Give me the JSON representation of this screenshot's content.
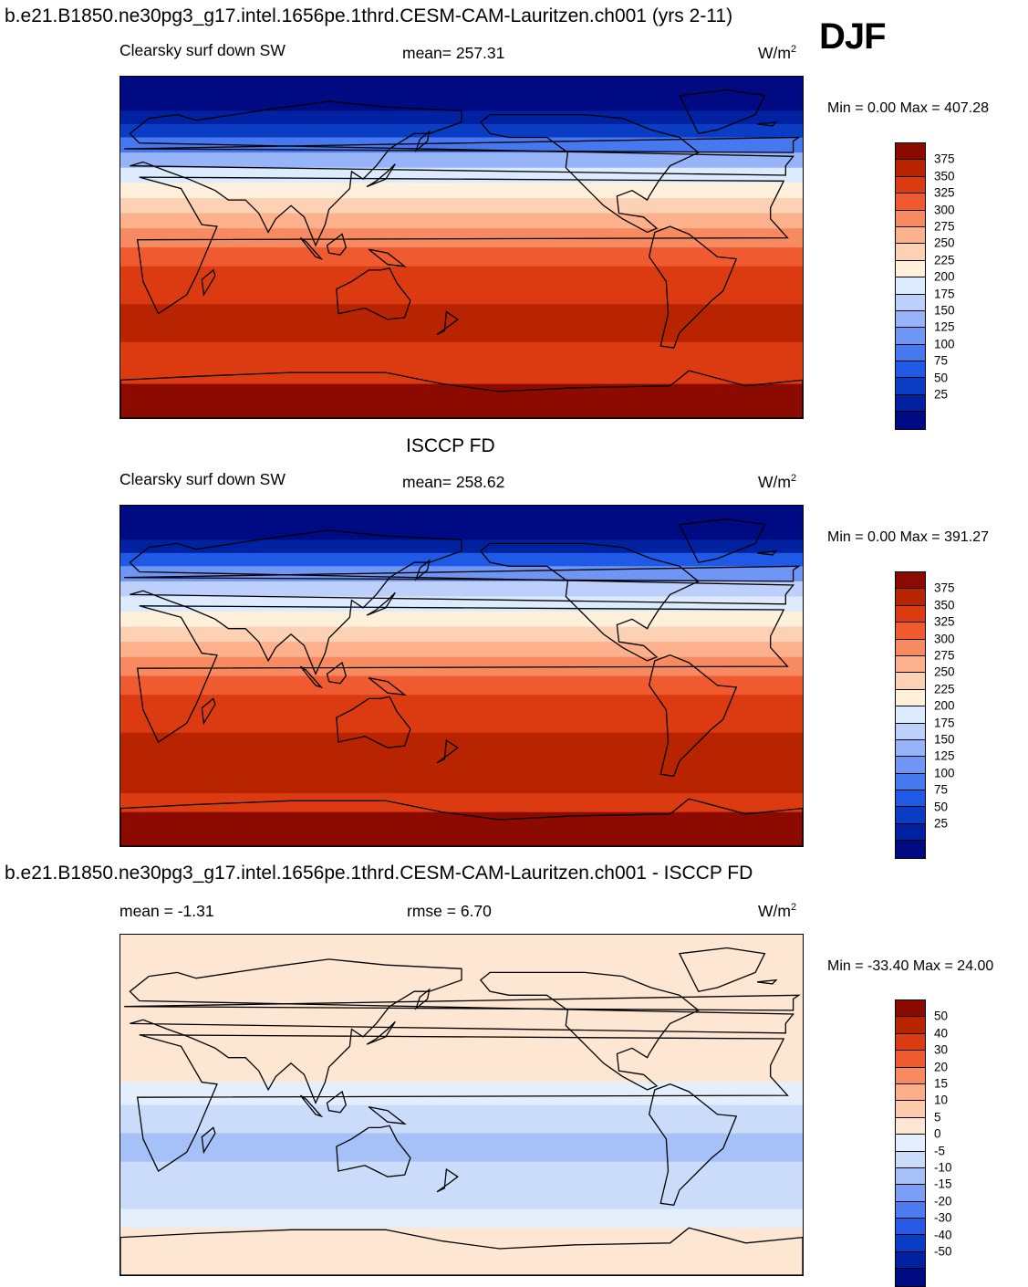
{
  "header": {
    "title": "b.e21.B1850.ne30pg3_g17.intel.1656pe.1thrd.CESM-CAM-Lauritzen.ch001 (yrs 2-11)",
    "season": "DJF"
  },
  "palettes": {
    "main": [
      "#000a82",
      "#0022a0",
      "#0a3cc4",
      "#1e5ae6",
      "#4678f0",
      "#7096f5",
      "#98b4f8",
      "#bcd0fb",
      "#dcebfd",
      "#fff0dc",
      "#fdd2b4",
      "#fcb08c",
      "#f88a62",
      "#f05a30",
      "#dc3a10",
      "#b82400",
      "#8c0a00"
    ],
    "diff": [
      "#000a82",
      "#0022a0",
      "#0a3cc4",
      "#2858e6",
      "#4c7cf0",
      "#7c9ff6",
      "#a6c0f8",
      "#cbdcfb",
      "#e4effd",
      "#fde6d2",
      "#fcccac",
      "#fbae88",
      "#f88a62",
      "#f05a30",
      "#dc3a10",
      "#b82400",
      "#8c0a00"
    ]
  },
  "chart_data": [
    {
      "type": "heatmap",
      "panel": "model",
      "left_label": "Clearsky surf down SW",
      "center_label": "mean= 257.31",
      "units_base": "W/m",
      "units_exp": "2",
      "min_max": "Min =   0.00 Max = 407.28",
      "mean": 257.31,
      "min": 0.0,
      "max": 407.28,
      "colorbar_levels": [
        "375",
        "350",
        "325",
        "300",
        "275",
        "250",
        "225",
        "200",
        "175",
        "150",
        "125",
        "100",
        "75",
        "50",
        "25"
      ],
      "palette": "main",
      "zonal_profile": [
        {
          "lat": 90,
          "band": 0
        },
        {
          "lat": 80,
          "band": 0
        },
        {
          "lat": 72,
          "band": 1
        },
        {
          "lat": 65,
          "band": 2
        },
        {
          "lat": 58,
          "band": 4
        },
        {
          "lat": 50,
          "band": 6
        },
        {
          "lat": 42,
          "band": 8
        },
        {
          "lat": 34,
          "band": 9
        },
        {
          "lat": 26,
          "band": 10
        },
        {
          "lat": 18,
          "band": 11
        },
        {
          "lat": 10,
          "band": 12
        },
        {
          "lat": 0,
          "band": 13
        },
        {
          "lat": -10,
          "band": 14
        },
        {
          "lat": -30,
          "band": 15
        },
        {
          "lat": -50,
          "band": 14
        },
        {
          "lat": -62,
          "band": 14
        },
        {
          "lat": -72,
          "band": 16
        },
        {
          "lat": -90,
          "band": 16
        }
      ]
    },
    {
      "type": "heatmap",
      "panel": "observation",
      "panel_title": "ISCCP FD",
      "left_label": "Clearsky surf down SW",
      "center_label": "mean= 258.62",
      "units_base": "W/m",
      "units_exp": "2",
      "min_max": "Min =   0.00 Max = 391.27",
      "mean": 258.62,
      "min": 0.0,
      "max": 391.27,
      "colorbar_levels": [
        "375",
        "350",
        "325",
        "300",
        "275",
        "250",
        "225",
        "200",
        "175",
        "150",
        "125",
        "100",
        "75",
        "50",
        "25"
      ],
      "palette": "main",
      "zonal_profile": [
        {
          "lat": 90,
          "band": 0
        },
        {
          "lat": 80,
          "band": 0
        },
        {
          "lat": 72,
          "band": 1
        },
        {
          "lat": 65,
          "band": 3
        },
        {
          "lat": 58,
          "band": 5
        },
        {
          "lat": 50,
          "band": 7
        },
        {
          "lat": 42,
          "band": 8
        },
        {
          "lat": 34,
          "band": 9
        },
        {
          "lat": 26,
          "band": 10
        },
        {
          "lat": 18,
          "band": 11
        },
        {
          "lat": 10,
          "band": 12
        },
        {
          "lat": 0,
          "band": 13
        },
        {
          "lat": -10,
          "band": 14
        },
        {
          "lat": -30,
          "band": 15
        },
        {
          "lat": -50,
          "band": 15
        },
        {
          "lat": -62,
          "band": 14
        },
        {
          "lat": -72,
          "band": 16
        },
        {
          "lat": -90,
          "band": 16
        }
      ]
    },
    {
      "type": "heatmap",
      "panel": "difference",
      "panel_title": "b.e21.B1850.ne30pg3_g17.intel.1656pe.1thrd.CESM-CAM-Lauritzen.ch001 - ISCCP FD",
      "left_label": "mean =  -1.31",
      "center_label": "rmse =   6.70",
      "units_base": "W/m",
      "units_exp": "2",
      "min_max": "Min = -33.40 Max =  24.00",
      "mean": -1.31,
      "rmse": 6.7,
      "min": -33.4,
      "max": 24.0,
      "colorbar_levels": [
        "50",
        "40",
        "30",
        "20",
        "15",
        "10",
        "5",
        "0",
        "-5",
        "-10",
        "-15",
        "-20",
        "-30",
        "-40",
        "-50"
      ],
      "palette": "diff",
      "zonal_profile": [
        {
          "lat": 90,
          "band": 9
        },
        {
          "lat": 60,
          "band": 9
        },
        {
          "lat": 40,
          "band": 9
        },
        {
          "lat": 25,
          "band": 9
        },
        {
          "lat": 12,
          "band": 8
        },
        {
          "lat": 0,
          "band": 7
        },
        {
          "lat": -15,
          "band": 6
        },
        {
          "lat": -30,
          "band": 7
        },
        {
          "lat": -45,
          "band": 7
        },
        {
          "lat": -55,
          "band": 8
        },
        {
          "lat": -65,
          "band": 9
        },
        {
          "lat": -90,
          "band": 9
        }
      ]
    }
  ]
}
